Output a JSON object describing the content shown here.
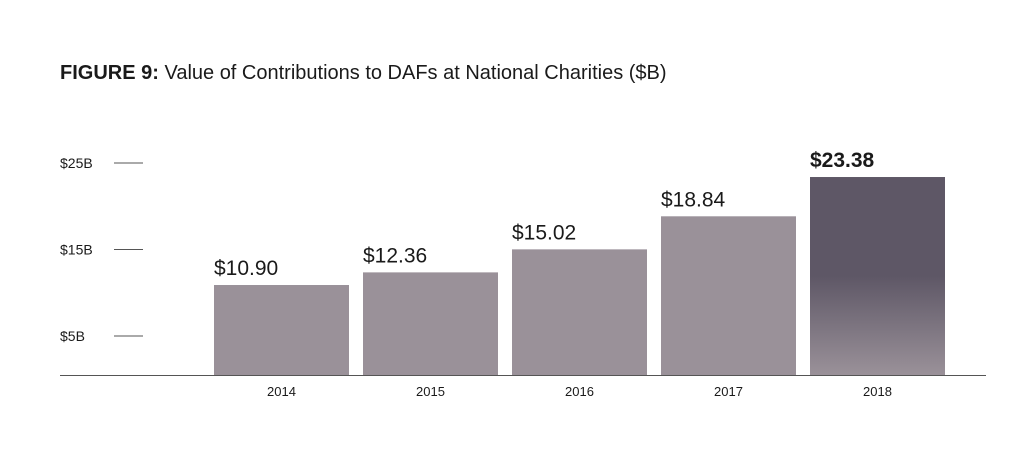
{
  "title": {
    "prefix": "FIGURE 9:",
    "text": " Value of Contributions to DAFs at National Charities ($B)"
  },
  "colors": {
    "bar": "#9a9199",
    "bar_highlight_top": "#5e5766",
    "bar_highlight_bottom": "#9a9199",
    "axis": "#555555"
  },
  "chart_data": {
    "type": "bar",
    "title": "FIGURE 9: Value of Contributions to DAFs at National Charities ($B)",
    "categories": [
      "2014",
      "2015",
      "2016",
      "2017",
      "2018"
    ],
    "values": [
      10.9,
      12.36,
      15.02,
      18.84,
      23.38
    ],
    "value_labels": [
      "$10.90",
      "$12.36",
      "$15.02",
      "$18.84",
      "$23.38"
    ],
    "highlight_index": 4,
    "yticks": [
      5,
      15,
      25
    ],
    "ytick_labels": [
      "$5B",
      "$15B",
      "$25B"
    ],
    "xlabel": "",
    "ylabel": "",
    "ylim": [
      0.5,
      25
    ],
    "grid": false,
    "legend": "none"
  }
}
